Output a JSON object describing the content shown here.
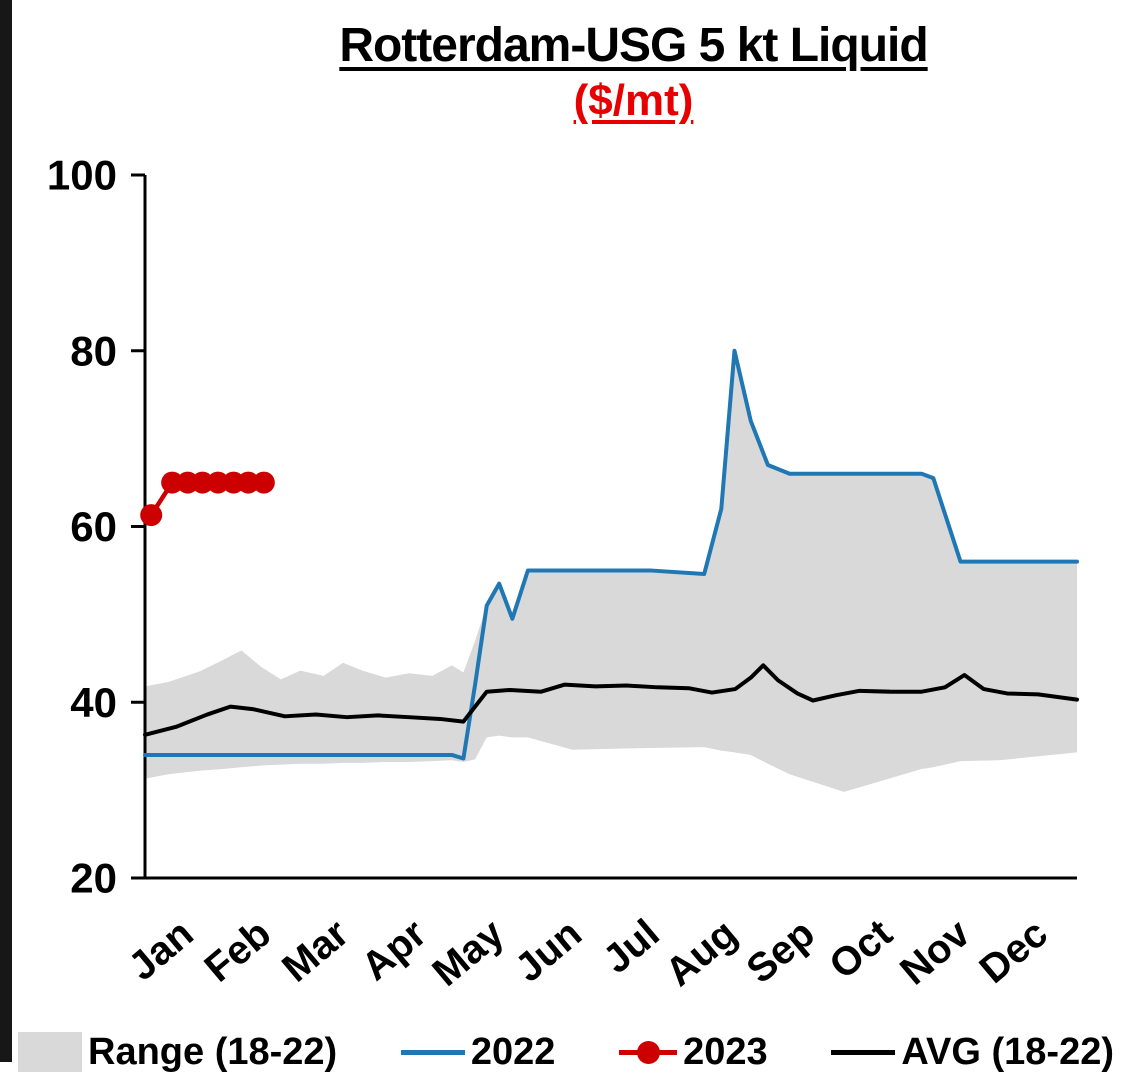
{
  "title": "Rotterdam-USG 5 kt Liquid",
  "subtitle": "($/mt)",
  "colors": {
    "band": "#d9d9d9",
    "line_2022": "#1f77b4",
    "line_2023": "#cc0000",
    "line_avg": "#000000",
    "subtitle_red": "#e60000",
    "axis": "#000000"
  },
  "chart_data": {
    "type": "line",
    "title": "Rotterdam-USG 5 kt Liquid",
    "subtitle": "($/mt)",
    "ylabel": "",
    "xlabel": "",
    "ylim": [
      20,
      100
    ],
    "yticks": [
      20,
      40,
      60,
      80,
      100
    ],
    "x_unit": "months, 0 = start of Jan, 12 = end of Dec",
    "month_labels": [
      "Jan",
      "Feb",
      "Mar",
      "Apr",
      "May",
      "Jun",
      "Jul",
      "Aug",
      "Sep",
      "Oct",
      "Nov",
      "Dec"
    ],
    "grid": false,
    "legend_position": "bottom",
    "band": {
      "name": "Range (18-22)",
      "color": "#d9d9d9",
      "x": [
        0,
        0.3,
        0.7,
        1.0,
        1.24,
        1.5,
        1.75,
        2.0,
        2.3,
        2.55,
        2.8,
        3.1,
        3.4,
        3.7,
        3.95,
        4.1,
        4.25,
        4.4,
        4.56,
        4.73,
        4.93,
        5.5,
        6.5,
        7.2,
        7.42,
        7.59,
        7.8,
        8.02,
        8.3,
        9.0,
        10.0,
        10.15,
        10.5,
        11.0,
        12
      ],
      "upper": [
        41.8,
        42.3,
        43.5,
        44.8,
        45.9,
        44.0,
        42.6,
        43.6,
        43.0,
        44.5,
        43.6,
        42.8,
        43.3,
        43.0,
        44.2,
        43.4,
        47.0,
        51.0,
        53.5,
        49.5,
        55.0,
        55.0,
        55.0,
        54.6,
        62.0,
        80.0,
        72.0,
        67.0,
        66.0,
        66.0,
        66.0,
        65.5,
        56.0,
        56.0,
        56.0
      ],
      "lower": [
        31.3,
        31.8,
        32.2,
        32.4,
        32.6,
        32.8,
        32.9,
        33.0,
        33.0,
        33.1,
        33.1,
        33.2,
        33.2,
        33.3,
        33.4,
        33.2,
        33.5,
        36.0,
        36.2,
        36.0,
        36.0,
        34.6,
        34.8,
        34.9,
        34.5,
        34.3,
        34.0,
        33.0,
        31.8,
        29.8,
        32.4,
        32.6,
        33.3,
        33.4,
        34.3
      ]
    },
    "series": [
      {
        "name": "2022",
        "color": "#1f77b4",
        "marker": false,
        "x": [
          0,
          3.95,
          4.1,
          4.25,
          4.4,
          4.56,
          4.73,
          4.93,
          5.5,
          6.5,
          7.2,
          7.42,
          7.59,
          7.8,
          8.02,
          8.3,
          9.0,
          10.0,
          10.15,
          10.5,
          11.0,
          12
        ],
        "y": [
          34,
          34,
          33.6,
          42,
          51,
          53.5,
          49.5,
          55,
          55,
          55,
          54.6,
          62,
          80,
          72,
          67,
          66,
          66,
          66,
          65.5,
          56,
          56,
          56
        ]
      },
      {
        "name": "2023",
        "color": "#cc0000",
        "marker": true,
        "x": [
          0.08,
          0.35,
          0.55,
          0.74,
          0.94,
          1.14,
          1.33,
          1.53
        ],
        "y": [
          61.3,
          65,
          65,
          65,
          65,
          65,
          65,
          65
        ]
      },
      {
        "name": "AVG (18-22)",
        "color": "#000000",
        "marker": false,
        "x": [
          0,
          0.4,
          0.8,
          1.1,
          1.4,
          1.8,
          2.2,
          2.6,
          3.0,
          3.4,
          3.8,
          4.1,
          4.25,
          4.4,
          4.7,
          5.1,
          5.4,
          5.8,
          6.2,
          6.6,
          7.0,
          7.3,
          7.6,
          7.8,
          7.96,
          8.15,
          8.4,
          8.6,
          8.9,
          9.2,
          9.6,
          10.0,
          10.3,
          10.55,
          10.8,
          11.1,
          11.5,
          12
        ],
        "y": [
          36.3,
          37.2,
          38.6,
          39.5,
          39.2,
          38.4,
          38.6,
          38.3,
          38.5,
          38.3,
          38.1,
          37.8,
          39.5,
          41.2,
          41.4,
          41.2,
          42.0,
          41.8,
          41.9,
          41.7,
          41.6,
          41.1,
          41.5,
          42.8,
          44.2,
          42.5,
          41.0,
          40.2,
          40.8,
          41.3,
          41.2,
          41.2,
          41.7,
          43.1,
          41.5,
          41.0,
          40.9,
          40.3
        ]
      }
    ],
    "legend_items": [
      {
        "kind": "band",
        "label": "Range (18-22)",
        "color": "#d9d9d9"
      },
      {
        "kind": "line",
        "label": "2022",
        "color": "#1f77b4"
      },
      {
        "kind": "line-marker",
        "label": "2023",
        "color": "#cc0000"
      },
      {
        "kind": "line",
        "label": "AVG (18-22)",
        "color": "#000000"
      }
    ]
  }
}
